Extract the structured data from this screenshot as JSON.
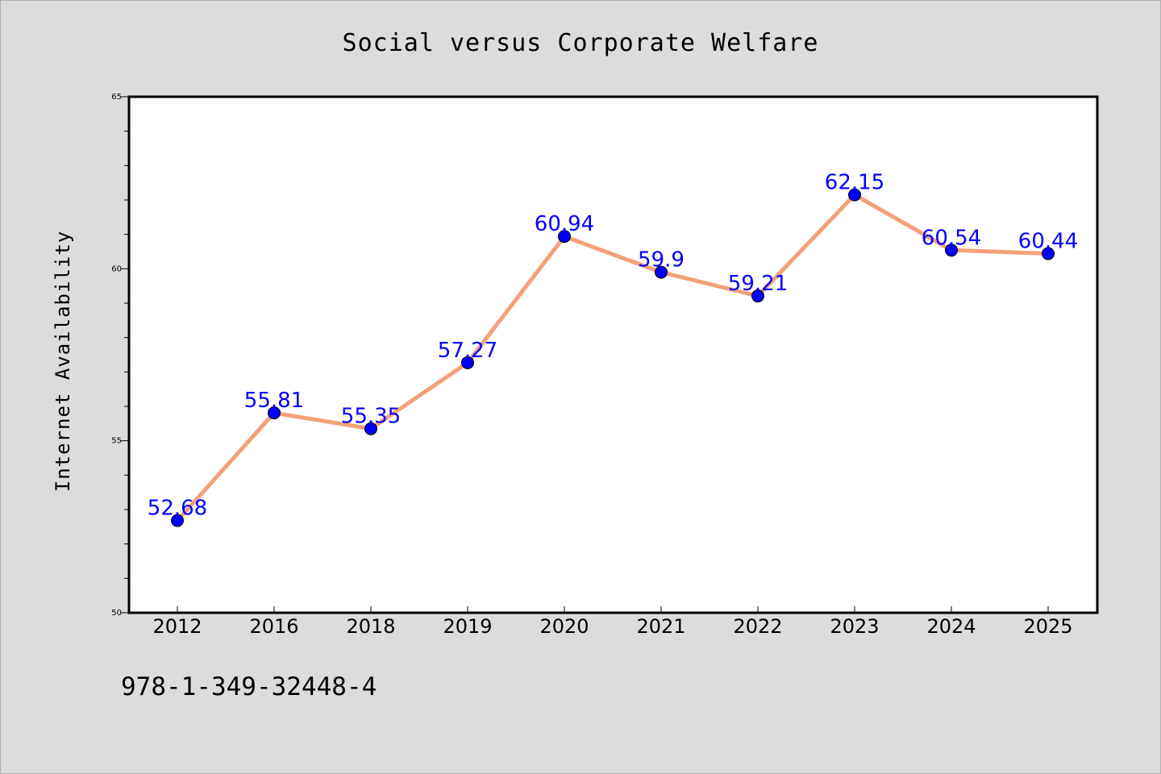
{
  "footer": {
    "isbn": "978-1-349-32448-4"
  },
  "chart_data": {
    "type": "line",
    "title": "Social versus Corporate Welfare",
    "xlabel": "",
    "ylabel": "Internet Availability",
    "categories": [
      "2012",
      "2016",
      "2018",
      "2019",
      "2020",
      "2021",
      "2022",
      "2023",
      "2024",
      "2025"
    ],
    "values": [
      52.68,
      55.81,
      55.35,
      57.27,
      60.94,
      59.9,
      59.21,
      62.15,
      60.54,
      60.44
    ],
    "data_labels": [
      "52.68",
      "55.81",
      "55.35",
      "57.27",
      "60.94",
      "59.9",
      "59.21",
      "62.15",
      "60.54",
      "60.44"
    ],
    "ylim": [
      50,
      65
    ],
    "y_ticks": [
      50,
      55,
      60,
      65
    ],
    "y_tick_labels": [
      "50",
      "55",
      "60",
      "65"
    ],
    "y_minor_step": 1,
    "grid": false,
    "legend": "none",
    "colors": {
      "line": "#f4a07a",
      "marker": "#0000ff",
      "marker_edge": "#000000",
      "data_label": "#0000ff",
      "plot_background": "#ffffff",
      "page_background": "#dcdcdc"
    }
  }
}
